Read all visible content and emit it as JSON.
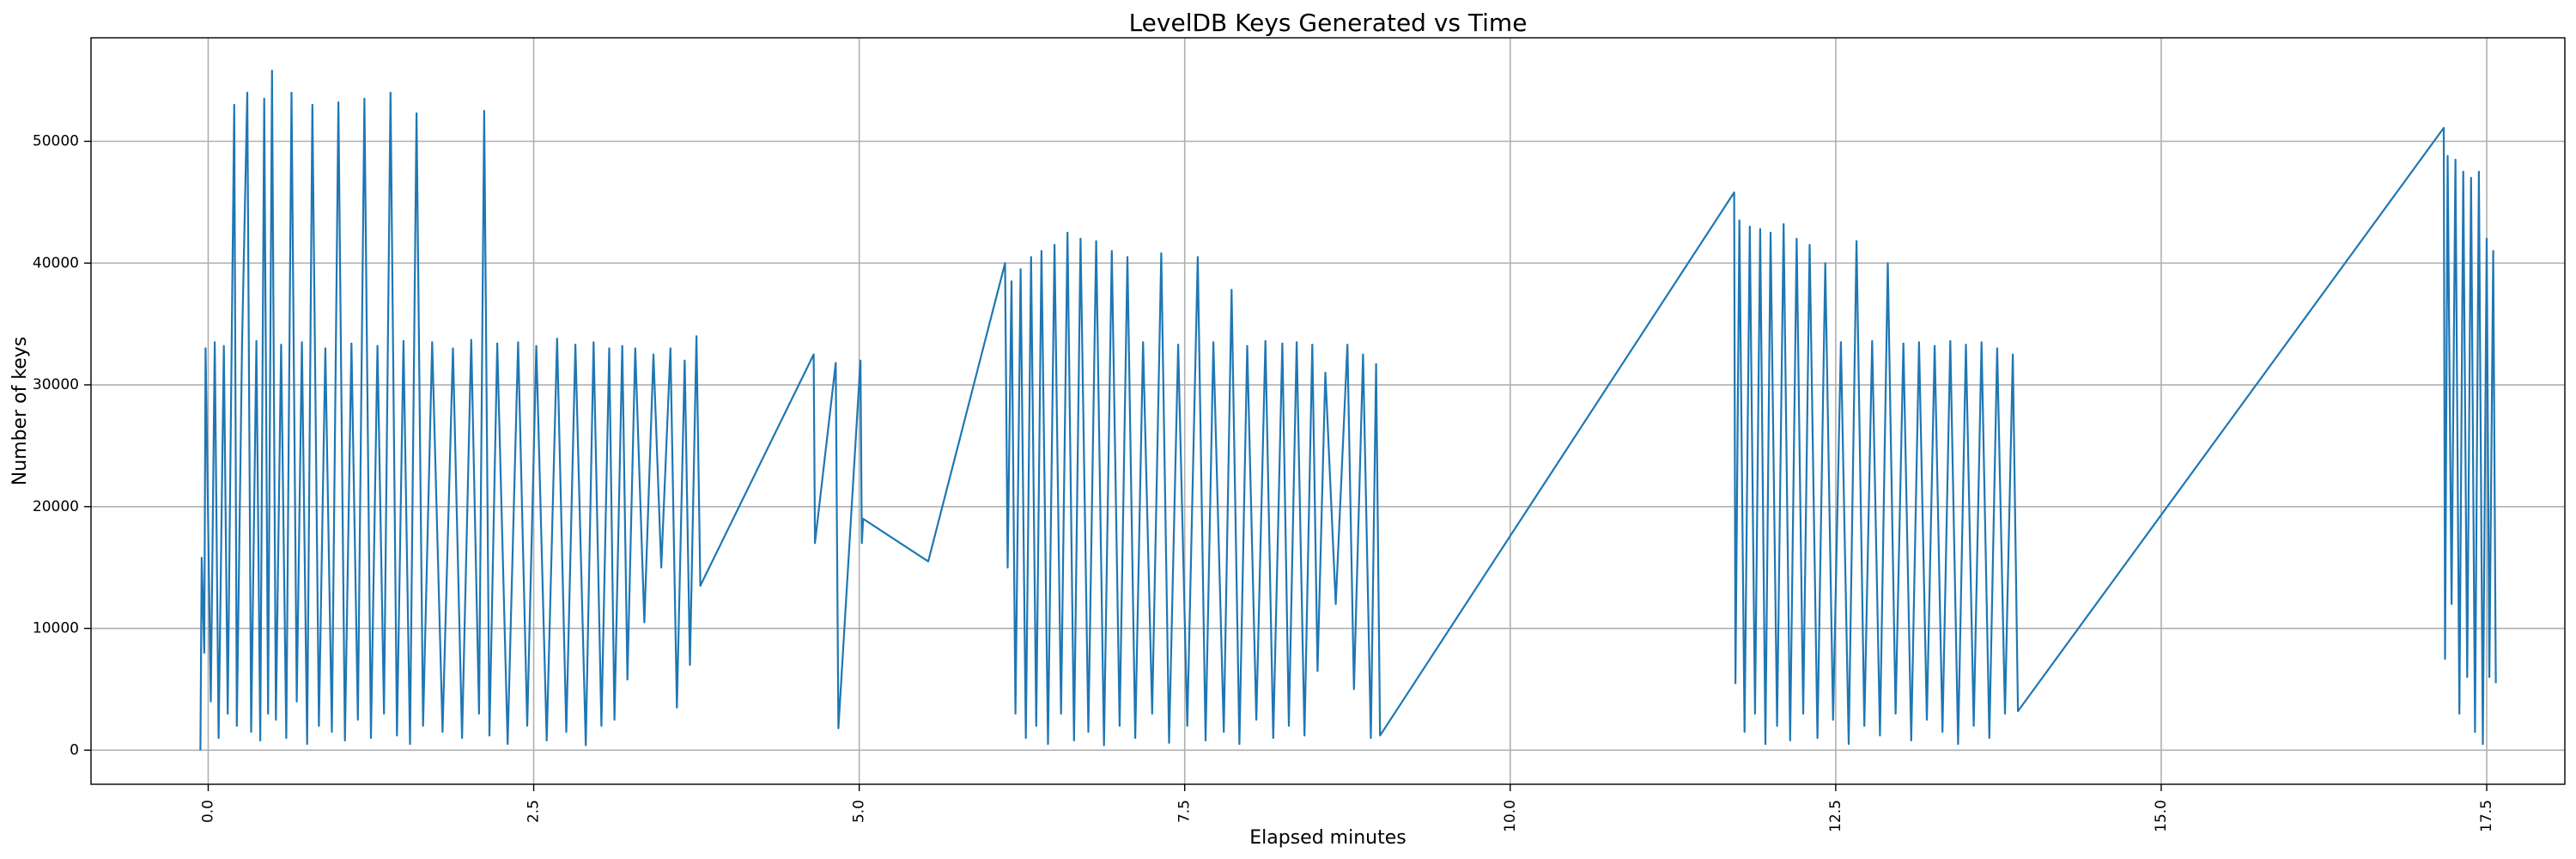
{
  "chart_data": {
    "type": "line",
    "title": "LevelDB Keys Generated vs Time",
    "xlabel": "Elapsed minutes",
    "ylabel": "Number of keys",
    "xlim": [
      -0.9,
      18.1
    ],
    "ylim": [
      -2800,
      58500
    ],
    "x_ticks": [
      0.0,
      2.5,
      5.0,
      7.5,
      10.0,
      12.5,
      15.0,
      17.5
    ],
    "x_tick_labels": [
      "0.0",
      "2.5",
      "5.0",
      "7.5",
      "10.0",
      "12.5",
      "15.0",
      "17.5"
    ],
    "y_ticks": [
      0,
      10000,
      20000,
      30000,
      40000,
      50000
    ],
    "y_tick_labels": [
      "0",
      "10000",
      "20000",
      "30000",
      "40000",
      "50000"
    ],
    "grid": true,
    "line_color": "#1f77b4",
    "series": [
      {
        "points": [
          [
            -0.06,
            0
          ],
          [
            -0.05,
            15800
          ],
          [
            -0.03,
            8000
          ],
          [
            -0.02,
            33000
          ],
          [
            0.02,
            4000
          ],
          [
            0.05,
            33500
          ],
          [
            0.08,
            1000
          ],
          [
            0.12,
            33200
          ],
          [
            0.15,
            3000
          ],
          [
            0.2,
            53000
          ],
          [
            0.22,
            2000
          ],
          [
            0.26,
            33400
          ],
          [
            0.3,
            54000
          ],
          [
            0.33,
            1500
          ],
          [
            0.37,
            33600
          ],
          [
            0.4,
            800
          ],
          [
            0.43,
            53500
          ],
          [
            0.46,
            3000
          ],
          [
            0.49,
            55800
          ],
          [
            0.52,
            2500
          ],
          [
            0.56,
            33300
          ],
          [
            0.6,
            1000
          ],
          [
            0.64,
            54000
          ],
          [
            0.68,
            4000
          ],
          [
            0.72,
            33500
          ],
          [
            0.76,
            500
          ],
          [
            0.8,
            53000
          ],
          [
            0.85,
            2000
          ],
          [
            0.9,
            33000
          ],
          [
            0.95,
            1500
          ],
          [
            1.0,
            53200
          ],
          [
            1.05,
            800
          ],
          [
            1.1,
            33400
          ],
          [
            1.15,
            2500
          ],
          [
            1.2,
            53500
          ],
          [
            1.25,
            1000
          ],
          [
            1.3,
            33200
          ],
          [
            1.35,
            3000
          ],
          [
            1.4,
            54000
          ],
          [
            1.45,
            1200
          ],
          [
            1.5,
            33600
          ],
          [
            1.55,
            500
          ],
          [
            1.6,
            52300
          ],
          [
            1.65,
            2000
          ],
          [
            1.72,
            33500
          ],
          [
            1.8,
            1500
          ],
          [
            1.88,
            33000
          ],
          [
            1.95,
            1000
          ],
          [
            2.02,
            33700
          ],
          [
            2.08,
            3000
          ],
          [
            2.12,
            52500
          ],
          [
            2.16,
            1200
          ],
          [
            2.22,
            33400
          ],
          [
            2.3,
            500
          ],
          [
            2.38,
            33500
          ],
          [
            2.45,
            2000
          ],
          [
            2.52,
            33200
          ],
          [
            2.6,
            800
          ],
          [
            2.68,
            33800
          ],
          [
            2.75,
            1500
          ],
          [
            2.82,
            33300
          ],
          [
            2.9,
            400
          ],
          [
            2.96,
            33500
          ],
          [
            3.02,
            2000
          ],
          [
            3.08,
            33000
          ],
          [
            3.12,
            2500
          ],
          [
            3.18,
            33200
          ],
          [
            3.22,
            5800
          ],
          [
            3.28,
            33000
          ],
          [
            3.35,
            10500
          ],
          [
            3.42,
            32500
          ],
          [
            3.48,
            15000
          ],
          [
            3.55,
            33000
          ],
          [
            3.6,
            3500
          ],
          [
            3.66,
            32000
          ],
          [
            3.7,
            7000
          ],
          [
            3.75,
            34000
          ],
          [
            3.78,
            13500
          ],
          [
            4.65,
            32500
          ],
          [
            4.66,
            17000
          ],
          [
            4.82,
            31800
          ],
          [
            4.84,
            1800
          ],
          [
            5.01,
            32000
          ],
          [
            5.02,
            17000
          ],
          [
            5.03,
            19000
          ],
          [
            5.53,
            15500
          ],
          [
            6.12,
            40000
          ],
          [
            6.14,
            15000
          ],
          [
            6.17,
            38500
          ],
          [
            6.2,
            3000
          ],
          [
            6.24,
            39500
          ],
          [
            6.28,
            1000
          ],
          [
            6.32,
            40500
          ],
          [
            6.36,
            2000
          ],
          [
            6.4,
            41000
          ],
          [
            6.45,
            500
          ],
          [
            6.5,
            41500
          ],
          [
            6.55,
            3000
          ],
          [
            6.6,
            42500
          ],
          [
            6.65,
            800
          ],
          [
            6.7,
            42000
          ],
          [
            6.76,
            1500
          ],
          [
            6.82,
            41800
          ],
          [
            6.88,
            400
          ],
          [
            6.94,
            41000
          ],
          [
            7.0,
            2000
          ],
          [
            7.06,
            40500
          ],
          [
            7.12,
            1000
          ],
          [
            7.18,
            33500
          ],
          [
            7.25,
            3000
          ],
          [
            7.32,
            40800
          ],
          [
            7.38,
            600
          ],
          [
            7.45,
            33300
          ],
          [
            7.52,
            2000
          ],
          [
            7.6,
            40500
          ],
          [
            7.66,
            800
          ],
          [
            7.72,
            33500
          ],
          [
            7.8,
            1500
          ],
          [
            7.86,
            37800
          ],
          [
            7.92,
            500
          ],
          [
            7.98,
            33200
          ],
          [
            8.05,
            2500
          ],
          [
            8.12,
            33600
          ],
          [
            8.18,
            1000
          ],
          [
            8.25,
            33400
          ],
          [
            8.3,
            2000
          ],
          [
            8.36,
            33500
          ],
          [
            8.42,
            1200
          ],
          [
            8.48,
            33300
          ],
          [
            8.52,
            6500
          ],
          [
            8.58,
            31000
          ],
          [
            8.66,
            12000
          ],
          [
            8.75,
            33300
          ],
          [
            8.8,
            5000
          ],
          [
            8.87,
            32500
          ],
          [
            8.93,
            1000
          ],
          [
            8.97,
            31700
          ],
          [
            9.0,
            1200
          ],
          [
            11.72,
            45800
          ],
          [
            11.73,
            5500
          ],
          [
            11.76,
            43500
          ],
          [
            11.8,
            1500
          ],
          [
            11.84,
            43000
          ],
          [
            11.88,
            3000
          ],
          [
            11.92,
            42800
          ],
          [
            11.96,
            500
          ],
          [
            12.0,
            42500
          ],
          [
            12.05,
            2000
          ],
          [
            12.1,
            43200
          ],
          [
            12.15,
            800
          ],
          [
            12.2,
            42000
          ],
          [
            12.25,
            3000
          ],
          [
            12.3,
            41500
          ],
          [
            12.36,
            1000
          ],
          [
            12.42,
            40000
          ],
          [
            12.48,
            2500
          ],
          [
            12.54,
            33500
          ],
          [
            12.6,
            500
          ],
          [
            12.66,
            41800
          ],
          [
            12.72,
            2000
          ],
          [
            12.78,
            33600
          ],
          [
            12.84,
            1200
          ],
          [
            12.9,
            40000
          ],
          [
            12.96,
            3000
          ],
          [
            13.02,
            33400
          ],
          [
            13.08,
            800
          ],
          [
            13.14,
            33500
          ],
          [
            13.2,
            2500
          ],
          [
            13.26,
            33200
          ],
          [
            13.32,
            1500
          ],
          [
            13.38,
            33600
          ],
          [
            13.44,
            500
          ],
          [
            13.5,
            33300
          ],
          [
            13.56,
            2000
          ],
          [
            13.62,
            33500
          ],
          [
            13.68,
            1000
          ],
          [
            13.74,
            33000
          ],
          [
            13.8,
            3000
          ],
          [
            13.86,
            32500
          ],
          [
            13.9,
            3200
          ],
          [
            17.17,
            51100
          ],
          [
            17.18,
            7500
          ],
          [
            17.2,
            48800
          ],
          [
            17.23,
            12000
          ],
          [
            17.26,
            48500
          ],
          [
            17.29,
            3000
          ],
          [
            17.32,
            47500
          ],
          [
            17.35,
            6000
          ],
          [
            17.38,
            47000
          ],
          [
            17.41,
            1500
          ],
          [
            17.44,
            47500
          ],
          [
            17.47,
            500
          ],
          [
            17.5,
            42000
          ],
          [
            17.52,
            6000
          ],
          [
            17.55,
            41000
          ],
          [
            17.57,
            5500
          ]
        ]
      }
    ]
  }
}
